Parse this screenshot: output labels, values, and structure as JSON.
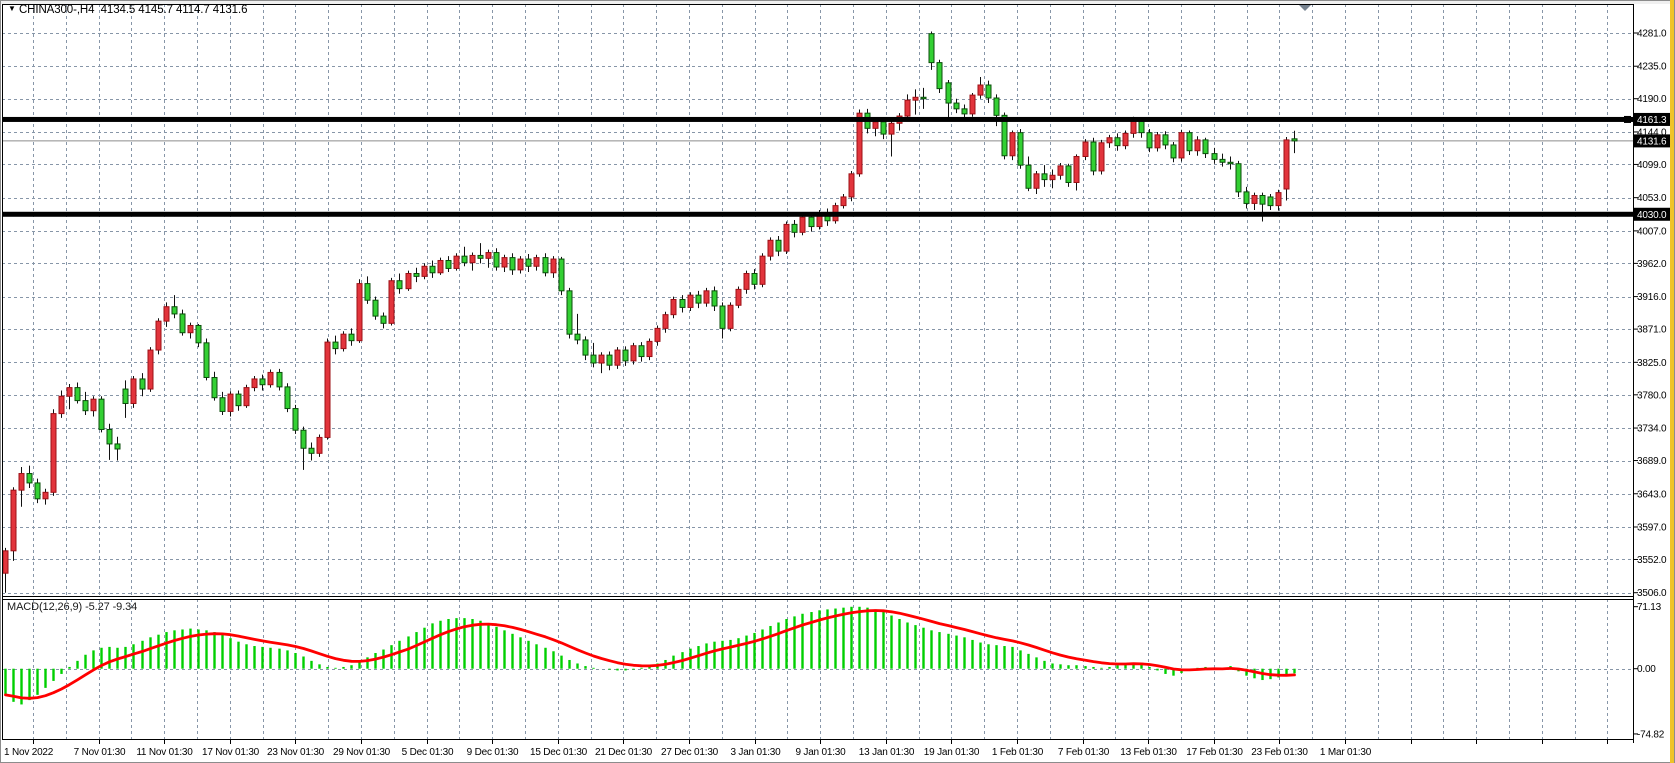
{
  "header": {
    "symbol": "CHINA300-",
    "timeframe": "H4",
    "title": "CHINA300-,H4",
    "open": "4134.5",
    "high": "4145.7",
    "low": "4114.7",
    "close": "4131.6",
    "ohlc_text": "4134.5 4145.7 4114.7 4131.6"
  },
  "indicator_label": {
    "name": "MACD(12,26,9)",
    "macd_value": "-5.27",
    "signal_value": "-9.34",
    "values_text": "-5.27 -9.34"
  },
  "price_axis": {
    "ticks": [
      "4281.0",
      "4235.0",
      "4190.0",
      "4144.0",
      "4099.0",
      "4053.0",
      "4007.0",
      "3962.0",
      "3916.0",
      "3871.0",
      "3825.0",
      "3780.0",
      "3734.0",
      "3689.0",
      "3643.0",
      "3597.0",
      "3552.0",
      "3506.0"
    ]
  },
  "macd_axis": {
    "max": "71.13",
    "zero": "0.00",
    "min": "-74.82"
  },
  "time_axis": {
    "labels": [
      "1 Nov 2022",
      "7 Nov 01:30",
      "11 Nov 01:30",
      "17 Nov 01:30",
      "23 Nov 01:30",
      "29 Nov 01:30",
      "5 Dec 01:30",
      "9 Dec 01:30",
      "15 Dec 01:30",
      "21 Dec 01:30",
      "27 Dec 01:30",
      "3 Jan 01:30",
      "9 Jan 01:30",
      "13 Jan 01:30",
      "19 Jan 01:30",
      "1 Feb 01:30",
      "7 Feb 01:30",
      "13 Feb 01:30",
      "17 Feb 01:30",
      "23 Feb 01:30",
      "1 Mar 01:30"
    ]
  },
  "hlines": [
    {
      "price": 4161.3,
      "label": "4161.3",
      "style": "thick"
    },
    {
      "price": 4030.0,
      "label": "4030.0",
      "style": "thick"
    },
    {
      "price": 4131.6,
      "label": "4131.6",
      "style": "thin"
    }
  ],
  "chart_data": {
    "type": "candlestick",
    "symbol": "CHINA300-",
    "timeframe": "H4",
    "price_range": [
      3506.0,
      4281.0
    ],
    "macd_range": [
      -74.82,
      71.13
    ],
    "candles_ohlc": [
      [
        3533,
        3568,
        3506,
        3564
      ],
      [
        3564,
        3652,
        3550,
        3648
      ],
      [
        3648,
        3680,
        3625,
        3671
      ],
      [
        3671,
        3682,
        3651,
        3658
      ],
      [
        3658,
        3664,
        3630,
        3636
      ],
      [
        3636,
        3650,
        3628,
        3645
      ],
      [
        3645,
        3760,
        3640,
        3754
      ],
      [
        3754,
        3786,
        3748,
        3778
      ],
      [
        3778,
        3795,
        3760,
        3790
      ],
      [
        3790,
        3797,
        3768,
        3772
      ],
      [
        3772,
        3784,
        3752,
        3758
      ],
      [
        3758,
        3778,
        3750,
        3774
      ],
      [
        3774,
        3778,
        3728,
        3732
      ],
      [
        3732,
        3740,
        3690,
        3712
      ],
      [
        3712,
        3722,
        3689,
        3705
      ],
      [
        3788,
        3800,
        3748,
        3768
      ],
      [
        3768,
        3806,
        3762,
        3802
      ],
      [
        3802,
        3810,
        3778,
        3788
      ],
      [
        3788,
        3846,
        3784,
        3842
      ],
      [
        3842,
        3886,
        3836,
        3882
      ],
      [
        3882,
        3908,
        3874,
        3902
      ],
      [
        3902,
        3918,
        3886,
        3892
      ],
      [
        3892,
        3898,
        3862,
        3866
      ],
      [
        3866,
        3880,
        3858,
        3876
      ],
      [
        3876,
        3878,
        3846,
        3852
      ],
      [
        3852,
        3858,
        3800,
        3804
      ],
      [
        3804,
        3812,
        3772,
        3776
      ],
      [
        3776,
        3784,
        3752,
        3757
      ],
      [
        3757,
        3785,
        3750,
        3781
      ],
      [
        3781,
        3786,
        3758,
        3765
      ],
      [
        3765,
        3794,
        3762,
        3790
      ],
      [
        3790,
        3806,
        3785,
        3802
      ],
      [
        3802,
        3808,
        3786,
        3794
      ],
      [
        3794,
        3815,
        3790,
        3811
      ],
      [
        3811,
        3816,
        3786,
        3791
      ],
      [
        3791,
        3796,
        3756,
        3761
      ],
      [
        3761,
        3766,
        3726,
        3731
      ],
      [
        3731,
        3736,
        3676,
        3706
      ],
      [
        3706,
        3714,
        3689,
        3699
      ],
      [
        3699,
        3725,
        3694,
        3721
      ],
      [
        3721,
        3858,
        3718,
        3853
      ],
      [
        3853,
        3862,
        3836,
        3844
      ],
      [
        3844,
        3868,
        3840,
        3864
      ],
      [
        3864,
        3872,
        3848,
        3855
      ],
      [
        3855,
        3940,
        3852,
        3934
      ],
      [
        3934,
        3944,
        3906,
        3911
      ],
      [
        3911,
        3916,
        3884,
        3889
      ],
      [
        3889,
        3894,
        3872,
        3879
      ],
      [
        3879,
        3942,
        3876,
        3938
      ],
      [
        3938,
        3948,
        3920,
        3927
      ],
      [
        3927,
        3952,
        3924,
        3948
      ],
      [
        3948,
        3956,
        3936,
        3944
      ],
      [
        3944,
        3962,
        3940,
        3958
      ],
      [
        3958,
        3966,
        3942,
        3949
      ],
      [
        3949,
        3970,
        3946,
        3966
      ],
      [
        3966,
        3972,
        3950,
        3955
      ],
      [
        3955,
        3976,
        3952,
        3972
      ],
      [
        3972,
        3985,
        3958,
        3963
      ],
      [
        3963,
        3977,
        3952,
        3973
      ],
      [
        3973,
        3990,
        3962,
        3969
      ],
      [
        3969,
        3981,
        3956,
        3977
      ],
      [
        3977,
        3983,
        3952,
        3957
      ],
      [
        3957,
        3974,
        3950,
        3970
      ],
      [
        3970,
        3976,
        3946,
        3953
      ],
      [
        3953,
        3972,
        3948,
        3968
      ],
      [
        3968,
        3975,
        3950,
        3958
      ],
      [
        3958,
        3974,
        3952,
        3970
      ],
      [
        3970,
        3976,
        3944,
        3949
      ],
      [
        3949,
        3972,
        3942,
        3968
      ],
      [
        3968,
        3971,
        3918,
        3924
      ],
      [
        3924,
        3928,
        3858,
        3864
      ],
      [
        3864,
        3892,
        3850,
        3856
      ],
      [
        3856,
        3861,
        3828,
        3835
      ],
      [
        3835,
        3852,
        3818,
        3824
      ],
      [
        3824,
        3839,
        3810,
        3835
      ],
      [
        3835,
        3840,
        3814,
        3821
      ],
      [
        3821,
        3846,
        3816,
        3842
      ],
      [
        3842,
        3847,
        3820,
        3827
      ],
      [
        3827,
        3852,
        3822,
        3848
      ],
      [
        3848,
        3853,
        3826,
        3833
      ],
      [
        3833,
        3858,
        3828,
        3854
      ],
      [
        3854,
        3876,
        3848,
        3872
      ],
      [
        3872,
        3895,
        3866,
        3891
      ],
      [
        3891,
        3916,
        3886,
        3912
      ],
      [
        3912,
        3918,
        3894,
        3901
      ],
      [
        3901,
        3922,
        3896,
        3918
      ],
      [
        3918,
        3924,
        3900,
        3907
      ],
      [
        3907,
        3928,
        3902,
        3924
      ],
      [
        3924,
        3930,
        3896,
        3903
      ],
      [
        3903,
        3908,
        3858,
        3872
      ],
      [
        3872,
        3908,
        3868,
        3904
      ],
      [
        3904,
        3930,
        3900,
        3926
      ],
      [
        3926,
        3952,
        3920,
        3948
      ],
      [
        3948,
        3954,
        3926,
        3933
      ],
      [
        3933,
        3976,
        3929,
        3972
      ],
      [
        3972,
        3998,
        3966,
        3994
      ],
      [
        3994,
        4000,
        3972,
        3979
      ],
      [
        3979,
        4020,
        3975,
        4016
      ],
      [
        4016,
        4022,
        3998,
        4005
      ],
      [
        4005,
        4030,
        4001,
        4026
      ],
      [
        4026,
        4032,
        4006,
        4013
      ],
      [
        4013,
        4036,
        4009,
        4032
      ],
      [
        4032,
        4038,
        4014,
        4021
      ],
      [
        4021,
        4046,
        4017,
        4042
      ],
      [
        4042,
        4058,
        4038,
        4054
      ],
      [
        4054,
        4090,
        4048,
        4086
      ],
      [
        4086,
        4175,
        4082,
        4170
      ],
      [
        4170,
        4176,
        4142,
        4149
      ],
      [
        4149,
        4162,
        4138,
        4158
      ],
      [
        4158,
        4163,
        4134,
        4141
      ],
      [
        4141,
        4160,
        4110,
        4156
      ],
      [
        4156,
        4170,
        4146,
        4166
      ],
      [
        4166,
        4196,
        4160,
        4188
      ],
      [
        4188,
        4203,
        4168,
        4192
      ],
      [
        4192,
        4205,
        4176,
        4190
      ],
      [
        4280,
        4283,
        4230,
        4240
      ],
      [
        4240,
        4244,
        4198,
        4204
      ],
      [
        4212,
        4216,
        4161,
        4184
      ],
      [
        4184,
        4190,
        4170,
        4176
      ],
      [
        4176,
        4182,
        4163,
        4169
      ],
      [
        4169,
        4198,
        4165,
        4195
      ],
      [
        4195,
        4220,
        4190,
        4209
      ],
      [
        4209,
        4215,
        4184,
        4191
      ],
      [
        4191,
        4196,
        4152,
        4167
      ],
      [
        4167,
        4171,
        4106,
        4111
      ],
      [
        4111,
        4146,
        4105,
        4143
      ],
      [
        4143,
        4148,
        4093,
        4098
      ],
      [
        4098,
        4110,
        4062,
        4066
      ],
      [
        4066,
        4090,
        4058,
        4086
      ],
      [
        4086,
        4098,
        4068,
        4078
      ],
      [
        4078,
        4092,
        4066,
        4084
      ],
      [
        4084,
        4101,
        4078,
        4097
      ],
      [
        4097,
        4100,
        4068,
        4074
      ],
      [
        4074,
        4113,
        4063,
        4110
      ],
      [
        4110,
        4134,
        4105,
        4130
      ],
      [
        4130,
        4136,
        4084,
        4090
      ],
      [
        4090,
        4133,
        4085,
        4129
      ],
      [
        4129,
        4140,
        4122,
        4136
      ],
      [
        4136,
        4142,
        4118,
        4125
      ],
      [
        4125,
        4146,
        4120,
        4142
      ],
      [
        4142,
        4165,
        4136,
        4159
      ],
      [
        4159,
        4163,
        4136,
        4143
      ],
      [
        4143,
        4148,
        4116,
        4122
      ],
      [
        4122,
        4144,
        4117,
        4140
      ],
      [
        4140,
        4145,
        4120,
        4126
      ],
      [
        4126,
        4130,
        4102,
        4108
      ],
      [
        4108,
        4147,
        4103,
        4143
      ],
      [
        4143,
        4146,
        4112,
        4118
      ],
      [
        4118,
        4138,
        4111,
        4133
      ],
      [
        4133,
        4136,
        4108,
        4114
      ],
      [
        4114,
        4122,
        4100,
        4106
      ],
      [
        4106,
        4114,
        4096,
        4102
      ],
      [
        4102,
        4110,
        4092,
        4100
      ],
      [
        4100,
        4104,
        4054,
        4061
      ],
      [
        4061,
        4068,
        4038,
        4045
      ],
      [
        4045,
        4060,
        4036,
        4056
      ],
      [
        4056,
        4060,
        4020,
        4044
      ],
      [
        4054,
        4058,
        4036,
        4042
      ],
      [
        4042,
        4064,
        4035,
        4060
      ],
      [
        4065,
        4137,
        4049,
        4133
      ],
      [
        4134.5,
        4145.7,
        4114.7,
        4131.6
      ]
    ],
    "macd_histogram": [
      -30,
      -38,
      -41,
      -36,
      -30,
      -22,
      -14,
      -6,
      2,
      9,
      16,
      21,
      24,
      25,
      24,
      25,
      28,
      32,
      36,
      39,
      42,
      44,
      45,
      46,
      45,
      44,
      42,
      39,
      35,
      31,
      28,
      26,
      25,
      24,
      23,
      21,
      18,
      14,
      9,
      5,
      2,
      1,
      2,
      4,
      8,
      13,
      18,
      22,
      27,
      32,
      37,
      42,
      47,
      52,
      55,
      57,
      58,
      58,
      57,
      55,
      52,
      48,
      44,
      40,
      36,
      32,
      28,
      24,
      20,
      15,
      10,
      6,
      3,
      1,
      0,
      -1,
      -2,
      -2,
      -1,
      1,
      3,
      6,
      10,
      15,
      19,
      23,
      26,
      29,
      31,
      32,
      33,
      35,
      38,
      41,
      45,
      49,
      53,
      57,
      60,
      63,
      65,
      67,
      68,
      69,
      70,
      71,
      71,
      70,
      68,
      65,
      61,
      57,
      53,
      50,
      47,
      44,
      42,
      40,
      38,
      36,
      33,
      30,
      28,
      27,
      26,
      25,
      21,
      17,
      13,
      9,
      6,
      5,
      4,
      4,
      3,
      2,
      1,
      2,
      4,
      5,
      7,
      5,
      2,
      -2,
      -6,
      -8,
      -5,
      -2,
      1,
      2,
      1,
      -1,
      3,
      -3,
      -8,
      -11,
      -13,
      -12,
      -10,
      -8,
      -5.27
    ],
    "macd_last": -5.27,
    "signal_last": -9.34,
    "colors": {
      "up_candle": "#e2343c",
      "down_candle": "#33d033",
      "candle_outline": "#111111",
      "histogram": "#00cf00",
      "signal_line": "#ff0000",
      "grid": "#8796a8",
      "hline": "#000000",
      "current_price_line": "#8c8c8c",
      "frame_accent": "#efc327"
    }
  }
}
